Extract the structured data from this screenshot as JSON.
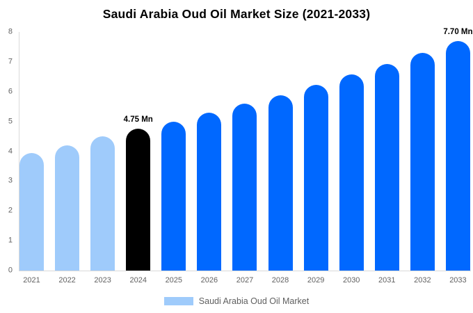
{
  "title": "Saudi Arabia Oud Oil Market Size (2021-2033)",
  "legend": {
    "label": "Saudi Arabia Oud Oil Market",
    "swatch_color": "#9FCBFB"
  },
  "chart_data": {
    "type": "bar",
    "title": "Saudi Arabia Oud Oil Market Size (2021-2033)",
    "unit": "Mn",
    "categories": [
      "2021",
      "2022",
      "2023",
      "2024",
      "2025",
      "2026",
      "2027",
      "2028",
      "2029",
      "2030",
      "2031",
      "2032",
      "2033"
    ],
    "values": [
      3.95,
      4.2,
      4.5,
      4.75,
      5.0,
      5.3,
      5.6,
      5.88,
      6.22,
      6.58,
      6.92,
      7.3,
      7.7
    ],
    "bar_labels": [
      "",
      "",
      "",
      "4.75 Mn",
      "",
      "",
      "",
      "",
      "",
      "",
      "",
      "",
      "7.70 Mn"
    ],
    "bar_roles": [
      "historical",
      "historical",
      "historical",
      "base_year",
      "forecast",
      "forecast",
      "forecast",
      "forecast",
      "forecast",
      "forecast",
      "forecast",
      "forecast",
      "forecast"
    ],
    "palette": {
      "historical": "#9FCBFB",
      "base_year": "#000000",
      "forecast": "#0068FF"
    },
    "y_ticks": [
      0,
      1,
      2,
      3,
      4,
      5,
      6,
      7,
      8
    ],
    "ylim": [
      0,
      8
    ],
    "xlabel": "",
    "ylabel": "",
    "legend_entries": [
      "Saudi Arabia Oud Oil Market"
    ],
    "legend_position": "bottom",
    "grid": false,
    "axis_color": "#D9D9D9",
    "tick_label_color": "#616161"
  }
}
